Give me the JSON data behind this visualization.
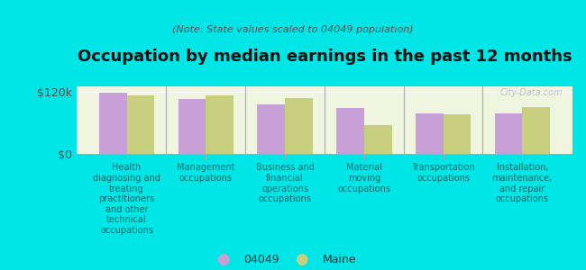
{
  "title": "Occupation by median earnings in the past 12 months",
  "subtitle": "(Note: State values scaled to 04049 population)",
  "background_color": "#00e5e5",
  "plot_bg_color": "#f0f5e0",
  "categories": [
    "Health\ndiagnosing and\ntreating\npractitioners\nand other\ntechnical\noccupations",
    "Management\noccupations",
    "Business and\nfinancial\noperations\noccupations",
    "Material\nmoving\noccupations",
    "Transportation\noccupations",
    "Installation,\nmaintenance,\nand repair\noccupations"
  ],
  "values_04049": [
    118000,
    105000,
    95000,
    88000,
    78000,
    77000
  ],
  "values_maine": [
    112000,
    112000,
    108000,
    55000,
    76000,
    90000
  ],
  "color_04049": "#c8a0d8",
  "color_maine": "#c8d080",
  "ylim": [
    0,
    130000
  ],
  "yticks": [
    0,
    120000
  ],
  "ytick_labels": [
    "$0",
    "$120k"
  ],
  "legend_04049": "04049",
  "legend_maine": "Maine",
  "watermark": "City-Data.com"
}
